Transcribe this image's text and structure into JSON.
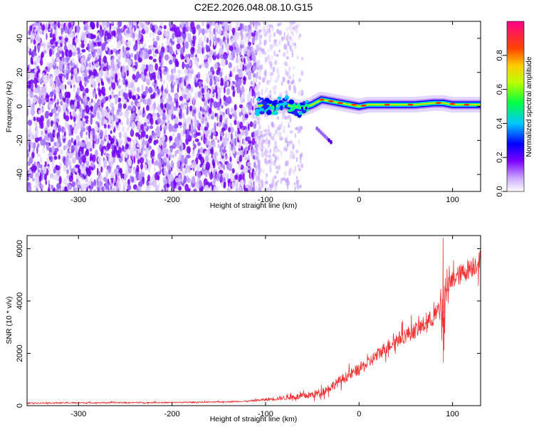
{
  "figure": {
    "title": "C2E2.2026.048.08.10.G15"
  },
  "chart_data": [
    {
      "type": "heatmap",
      "name": "spectrogram",
      "xlabel": "Height of straight line (km)",
      "ylabel": "Frequency (Hz)",
      "xlim": [
        -355,
        130
      ],
      "ylim": [
        -50,
        50
      ],
      "xticks": [
        -300,
        -200,
        -100,
        0,
        100
      ],
      "yticks": [
        -40,
        -20,
        0,
        20,
        40
      ],
      "grid": false,
      "colormap": "rainbow (white-violet-blue-cyan-green-yellow-orange-red-magenta)",
      "colorbar": {
        "label": "Normalized spectral amplitude",
        "range": [
          0,
          1
        ],
        "ticks": [
          0.0,
          0.2,
          0.4,
          0.6,
          0.8
        ],
        "placement": "right"
      },
      "features": {
        "noise_region_x": [
          -355,
          -110
        ],
        "sparse_noise_x": [
          -110,
          -60
        ],
        "signal_track": {
          "x": [
            -108,
            -100,
            -90,
            -80,
            -70,
            -60,
            -50,
            -40,
            -30,
            -20,
            -10,
            0,
            10,
            20,
            40,
            60,
            80,
            90,
            100,
            130
          ],
          "freq": [
            0,
            1,
            0,
            1,
            0,
            -1,
            1,
            4,
            3,
            2,
            1,
            0,
            1,
            1,
            1,
            1,
            2,
            2,
            1,
            1
          ]
        },
        "secondary_streak": {
          "x": [
            -45,
            -30
          ],
          "freq": [
            -13,
            -21
          ]
        }
      }
    },
    {
      "type": "line",
      "name": "snr",
      "xlabel": "Height of straight line (km)",
      "ylabel": "SNR (10 * v/v)",
      "xlim": [
        -355,
        130
      ],
      "ylim": [
        0,
        6500
      ],
      "xticks": [
        -300,
        -200,
        -100,
        0,
        100
      ],
      "yticks": [
        0,
        2000,
        4000,
        6000
      ],
      "grid": false,
      "series": [
        {
          "color": "#ee3333",
          "x": [
            -355,
            -300,
            -250,
            -200,
            -150,
            -120,
            -100,
            -80,
            -60,
            -50,
            -40,
            -30,
            -20,
            -10,
            0,
            10,
            20,
            30,
            40,
            50,
            60,
            70,
            80,
            85,
            90,
            95,
            100,
            110,
            120,
            130
          ],
          "y": [
            100,
            110,
            115,
            120,
            140,
            170,
            230,
            300,
            360,
            420,
            520,
            720,
            960,
            1180,
            1400,
            1620,
            1960,
            2250,
            2500,
            2700,
            2880,
            3100,
            3400,
            3620,
            3900,
            4500,
            4820,
            5050,
            5300,
            5550
          ],
          "spike": {
            "x": 90,
            "max": 6400,
            "min": 1650
          }
        }
      ]
    }
  ]
}
